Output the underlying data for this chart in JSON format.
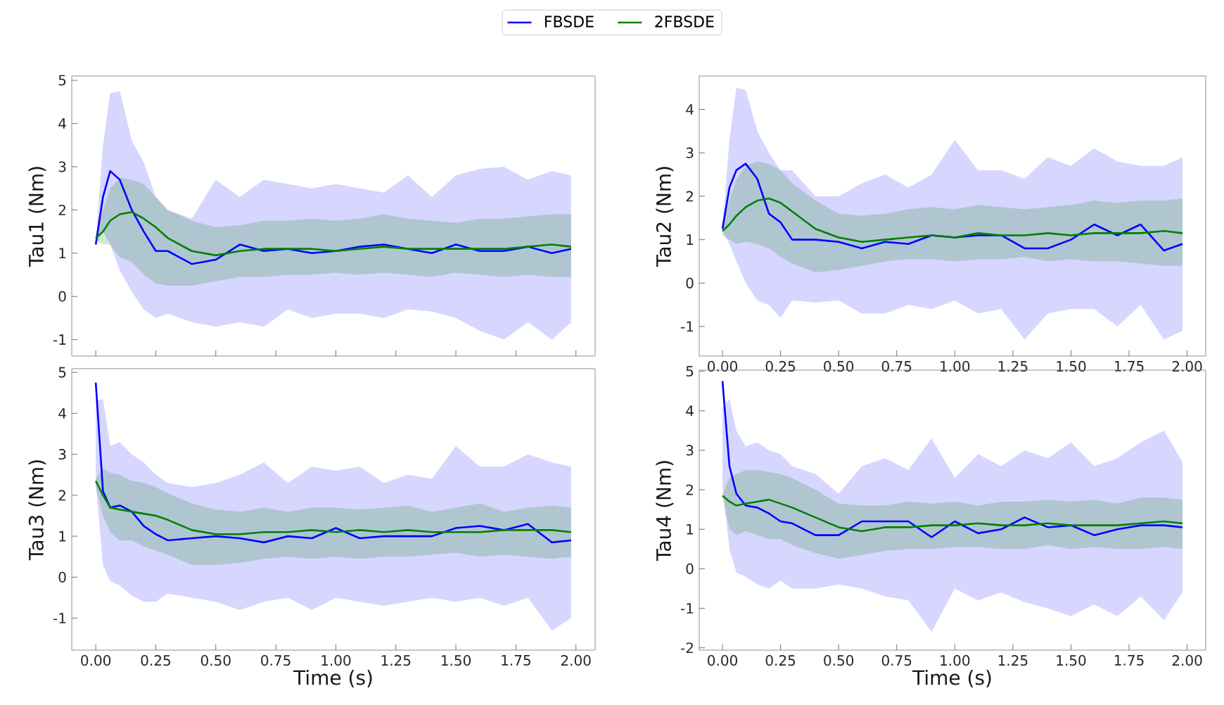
{
  "chart_data": [
    {
      "type": "line",
      "ylabel": "Tau1 (Nm)",
      "legend": "top",
      "tick_labels": "y",
      "xlim": [
        -0.1,
        2.08
      ],
      "ylim": [
        -1.38,
        5.1
      ],
      "yticks": [
        -1,
        0,
        1,
        2,
        3,
        4,
        5
      ],
      "xticks": [
        0,
        0.25,
        0.5,
        0.75,
        1,
        1.25,
        1.5,
        1.75,
        2
      ],
      "x": [
        0,
        0.03,
        0.06,
        0.1,
        0.15,
        0.2,
        0.25,
        0.3,
        0.4,
        0.5,
        0.6,
        0.7,
        0.8,
        0.9,
        1.0,
        1.1,
        1.2,
        1.3,
        1.4,
        1.5,
        1.6,
        1.7,
        1.8,
        1.9,
        1.98
      ],
      "series": [
        {
          "name": "FBSDE",
          "color": "#0000ff",
          "values": [
            1.2,
            2.3,
            2.9,
            2.7,
            2.0,
            1.5,
            1.05,
            1.05,
            0.75,
            0.85,
            1.2,
            1.05,
            1.1,
            1.0,
            1.05,
            1.15,
            1.2,
            1.1,
            1.0,
            1.2,
            1.05,
            1.05,
            1.15,
            1.0,
            1.1
          ],
          "upper": [
            1.3,
            3.5,
            4.7,
            4.75,
            3.6,
            3.1,
            2.3,
            2.0,
            1.8,
            2.7,
            2.3,
            2.7,
            2.6,
            2.5,
            2.6,
            2.5,
            2.4,
            2.8,
            2.3,
            2.8,
            2.95,
            3.0,
            2.7,
            2.9,
            2.8
          ],
          "lower": [
            1.2,
            1.5,
            1.2,
            0.6,
            0.1,
            -0.3,
            -0.5,
            -0.4,
            -0.6,
            -0.7,
            -0.6,
            -0.7,
            -0.3,
            -0.5,
            -0.4,
            -0.4,
            -0.5,
            -0.3,
            -0.35,
            -0.5,
            -0.8,
            -1.0,
            -0.6,
            -1.0,
            -0.6
          ]
        },
        {
          "name": "2FBSDE",
          "color": "#008000",
          "values": [
            1.35,
            1.5,
            1.75,
            1.9,
            1.95,
            1.8,
            1.6,
            1.35,
            1.05,
            0.95,
            1.05,
            1.1,
            1.1,
            1.1,
            1.05,
            1.1,
            1.15,
            1.1,
            1.1,
            1.1,
            1.1,
            1.1,
            1.15,
            1.2,
            1.15
          ],
          "upper": [
            1.4,
            2.0,
            2.5,
            2.75,
            2.7,
            2.6,
            2.3,
            2.0,
            1.75,
            1.6,
            1.65,
            1.75,
            1.75,
            1.8,
            1.75,
            1.8,
            1.9,
            1.8,
            1.75,
            1.7,
            1.8,
            1.8,
            1.85,
            1.9,
            1.9
          ],
          "lower": [
            1.3,
            1.2,
            1.2,
            0.9,
            0.8,
            0.5,
            0.3,
            0.25,
            0.25,
            0.35,
            0.45,
            0.45,
            0.5,
            0.5,
            0.55,
            0.5,
            0.55,
            0.5,
            0.45,
            0.55,
            0.5,
            0.45,
            0.5,
            0.45,
            0.45
          ]
        }
      ]
    },
    {
      "type": "line",
      "ylabel": "Tau2 (Nm)",
      "xlim": [
        -0.1,
        2.08
      ],
      "ylim": [
        -1.68,
        4.77
      ],
      "yticks": [
        -1,
        0,
        1,
        2,
        3,
        4
      ],
      "xticks": [
        {
          "value": 0,
          "label": "0.00"
        },
        {
          "value": 0.25,
          "label": "0.25"
        },
        {
          "value": 0.5,
          "label": "0.50"
        },
        {
          "value": 0.75,
          "label": "0.75"
        },
        {
          "value": 1,
          "label": "1.00"
        },
        {
          "value": 1.25,
          "label": "1.25"
        },
        {
          "value": 1.5,
          "label": "1.50"
        },
        {
          "value": 1.75,
          "label": "1.75"
        },
        {
          "value": 2,
          "label": "2.00"
        }
      ],
      "x": [
        0,
        0.03,
        0.06,
        0.1,
        0.15,
        0.2,
        0.25,
        0.3,
        0.4,
        0.5,
        0.6,
        0.7,
        0.8,
        0.9,
        1.0,
        1.1,
        1.2,
        1.3,
        1.4,
        1.5,
        1.6,
        1.7,
        1.8,
        1.9,
        1.98
      ],
      "series": [
        {
          "color": "#0000ff",
          "values": [
            1.25,
            2.2,
            2.6,
            2.75,
            2.4,
            1.6,
            1.4,
            1.0,
            1.0,
            0.95,
            0.8,
            0.95,
            0.9,
            1.1,
            1.05,
            1.1,
            1.1,
            0.8,
            0.8,
            1.0,
            1.35,
            1.1,
            1.35,
            0.75,
            0.9
          ],
          "upper": [
            1.3,
            3.3,
            4.5,
            4.45,
            3.5,
            3.0,
            2.6,
            2.6,
            2.0,
            2.0,
            2.3,
            2.5,
            2.2,
            2.5,
            3.3,
            2.6,
            2.6,
            2.4,
            2.9,
            2.7,
            3.1,
            2.8,
            2.7,
            2.7,
            2.9
          ],
          "lower": [
            1.2,
            0.9,
            0.5,
            0.0,
            -0.4,
            -0.5,
            -0.8,
            -0.4,
            -0.45,
            -0.4,
            -0.7,
            -0.7,
            -0.5,
            -0.6,
            -0.4,
            -0.7,
            -0.6,
            -1.3,
            -0.7,
            -0.6,
            -0.6,
            -1.0,
            -0.5,
            -1.3,
            -1.1
          ]
        },
        {
          "color": "#008000",
          "values": [
            1.2,
            1.35,
            1.55,
            1.75,
            1.9,
            1.95,
            1.85,
            1.65,
            1.25,
            1.05,
            0.95,
            1.0,
            1.05,
            1.1,
            1.05,
            1.15,
            1.1,
            1.1,
            1.15,
            1.1,
            1.15,
            1.15,
            1.15,
            1.2,
            1.15
          ],
          "upper": [
            1.3,
            1.9,
            2.4,
            2.7,
            2.8,
            2.75,
            2.6,
            2.3,
            1.9,
            1.6,
            1.55,
            1.6,
            1.7,
            1.75,
            1.7,
            1.8,
            1.75,
            1.7,
            1.75,
            1.8,
            1.9,
            1.85,
            1.9,
            1.9,
            1.95
          ],
          "lower": [
            1.1,
            1.0,
            0.9,
            0.95,
            0.9,
            0.8,
            0.6,
            0.45,
            0.25,
            0.3,
            0.4,
            0.5,
            0.55,
            0.55,
            0.5,
            0.55,
            0.55,
            0.6,
            0.5,
            0.55,
            0.5,
            0.5,
            0.45,
            0.4,
            0.4
          ]
        }
      ]
    },
    {
      "type": "line",
      "xlabel": "Time (s)",
      "ylabel": "Tau3 (Nm)",
      "xlim": [
        -0.1,
        2.08
      ],
      "ylim": [
        -1.78,
        5.09
      ],
      "yticks": [
        -1,
        0,
        1,
        2,
        3,
        4,
        5
      ],
      "xticks": [
        {
          "value": 0,
          "label": "0.00"
        },
        {
          "value": 0.25,
          "label": "0.25"
        },
        {
          "value": 0.5,
          "label": "0.50"
        },
        {
          "value": 0.75,
          "label": "0.75"
        },
        {
          "value": 1,
          "label": "1.00"
        },
        {
          "value": 1.25,
          "label": "1.25"
        },
        {
          "value": 1.5,
          "label": "1.50"
        },
        {
          "value": 1.75,
          "label": "1.75"
        },
        {
          "value": 2,
          "label": "2.00"
        }
      ],
      "x": [
        0,
        0.03,
        0.06,
        0.1,
        0.15,
        0.2,
        0.25,
        0.3,
        0.4,
        0.5,
        0.6,
        0.7,
        0.8,
        0.9,
        1.0,
        1.1,
        1.2,
        1.3,
        1.4,
        1.5,
        1.6,
        1.7,
        1.8,
        1.9,
        1.98
      ],
      "series": [
        {
          "color": "#0000ff",
          "values": [
            4.75,
            2.1,
            1.7,
            1.75,
            1.6,
            1.25,
            1.05,
            0.9,
            0.95,
            1.0,
            0.95,
            0.85,
            1.0,
            0.95,
            1.2,
            0.95,
            1.0,
            1.0,
            1.0,
            1.2,
            1.25,
            1.15,
            1.3,
            0.85,
            0.9
          ],
          "upper": [
            4.3,
            4.35,
            3.2,
            3.3,
            3.0,
            2.8,
            2.5,
            2.3,
            2.2,
            2.3,
            2.5,
            2.8,
            2.3,
            2.7,
            2.6,
            2.7,
            2.3,
            2.5,
            2.4,
            3.2,
            2.7,
            2.7,
            3.0,
            2.8,
            2.7
          ],
          "lower": [
            2.3,
            0.3,
            -0.1,
            -0.2,
            -0.45,
            -0.6,
            -0.6,
            -0.4,
            -0.5,
            -0.6,
            -0.8,
            -0.6,
            -0.5,
            -0.8,
            -0.5,
            -0.6,
            -0.7,
            -0.6,
            -0.5,
            -0.6,
            -0.5,
            -0.7,
            -0.5,
            -1.3,
            -1.0
          ]
        },
        {
          "color": "#008000",
          "values": [
            2.35,
            2.0,
            1.7,
            1.65,
            1.6,
            1.55,
            1.5,
            1.4,
            1.15,
            1.05,
            1.05,
            1.1,
            1.1,
            1.15,
            1.1,
            1.15,
            1.1,
            1.15,
            1.1,
            1.1,
            1.1,
            1.15,
            1.15,
            1.15,
            1.1
          ],
          "upper": [
            2.4,
            2.65,
            2.55,
            2.5,
            2.35,
            2.3,
            2.2,
            2.05,
            1.8,
            1.65,
            1.6,
            1.7,
            1.6,
            1.7,
            1.7,
            1.65,
            1.7,
            1.75,
            1.6,
            1.7,
            1.8,
            1.6,
            1.7,
            1.75,
            1.7
          ],
          "lower": [
            2.2,
            1.5,
            1.1,
            0.9,
            0.9,
            0.75,
            0.65,
            0.55,
            0.3,
            0.3,
            0.35,
            0.45,
            0.5,
            0.45,
            0.5,
            0.45,
            0.5,
            0.5,
            0.55,
            0.6,
            0.5,
            0.55,
            0.5,
            0.45,
            0.5
          ]
        }
      ]
    },
    {
      "type": "line",
      "xlabel": "Time (s)",
      "ylabel": "Tau4 (Nm)",
      "xlim": [
        -0.1,
        2.08
      ],
      "ylim": [
        -2.06,
        5.03
      ],
      "yticks": [
        -2,
        -1,
        0,
        1,
        2,
        3,
        4,
        5
      ],
      "xticks": [
        {
          "value": 0,
          "label": "0.00"
        },
        {
          "value": 0.25,
          "label": "0.25"
        },
        {
          "value": 0.5,
          "label": "0.50"
        },
        {
          "value": 0.75,
          "label": "0.75"
        },
        {
          "value": 1,
          "label": "1.00"
        },
        {
          "value": 1.25,
          "label": "1.25"
        },
        {
          "value": 1.5,
          "label": "1.50"
        },
        {
          "value": 1.75,
          "label": "1.75"
        },
        {
          "value": 2,
          "label": "2.00"
        }
      ],
      "x": [
        0,
        0.03,
        0.06,
        0.1,
        0.15,
        0.2,
        0.25,
        0.3,
        0.4,
        0.5,
        0.6,
        0.7,
        0.8,
        0.9,
        1.0,
        1.1,
        1.2,
        1.3,
        1.4,
        1.5,
        1.6,
        1.7,
        1.8,
        1.9,
        1.98
      ],
      "series": [
        {
          "color": "#0000ff",
          "values": [
            4.75,
            2.6,
            1.9,
            1.6,
            1.55,
            1.4,
            1.2,
            1.15,
            0.85,
            0.85,
            1.2,
            1.2,
            1.2,
            0.8,
            1.2,
            0.9,
            1.0,
            1.3,
            1.05,
            1.1,
            0.85,
            1.0,
            1.1,
            1.1,
            1.05
          ],
          "upper": [
            4.1,
            4.3,
            3.5,
            3.1,
            3.2,
            3.0,
            2.9,
            2.6,
            2.4,
            1.9,
            2.6,
            2.8,
            2.5,
            3.3,
            2.3,
            2.9,
            2.6,
            3.0,
            2.8,
            3.2,
            2.6,
            2.8,
            3.2,
            3.5,
            2.7
          ],
          "lower": [
            2.1,
            0.5,
            -0.1,
            -0.2,
            -0.4,
            -0.5,
            -0.3,
            -0.5,
            -0.5,
            -0.4,
            -0.5,
            -0.7,
            -0.8,
            -1.6,
            -0.5,
            -0.8,
            -0.6,
            -0.85,
            -1.0,
            -1.2,
            -0.9,
            -1.2,
            -0.7,
            -1.3,
            -0.6
          ]
        },
        {
          "color": "#008000",
          "values": [
            1.85,
            1.7,
            1.6,
            1.65,
            1.7,
            1.75,
            1.65,
            1.55,
            1.3,
            1.05,
            0.95,
            1.05,
            1.05,
            1.1,
            1.1,
            1.15,
            1.1,
            1.1,
            1.15,
            1.1,
            1.1,
            1.1,
            1.15,
            1.2,
            1.15
          ],
          "upper": [
            1.9,
            2.3,
            2.4,
            2.5,
            2.5,
            2.45,
            2.4,
            2.3,
            2.0,
            1.65,
            1.6,
            1.6,
            1.7,
            1.65,
            1.7,
            1.6,
            1.7,
            1.7,
            1.75,
            1.7,
            1.75,
            1.65,
            1.8,
            1.8,
            1.75
          ],
          "lower": [
            1.8,
            1.0,
            0.85,
            0.95,
            0.85,
            0.75,
            0.75,
            0.6,
            0.4,
            0.25,
            0.35,
            0.45,
            0.5,
            0.5,
            0.55,
            0.55,
            0.5,
            0.5,
            0.6,
            0.5,
            0.55,
            0.5,
            0.5,
            0.55,
            0.5
          ]
        }
      ]
    }
  ]
}
